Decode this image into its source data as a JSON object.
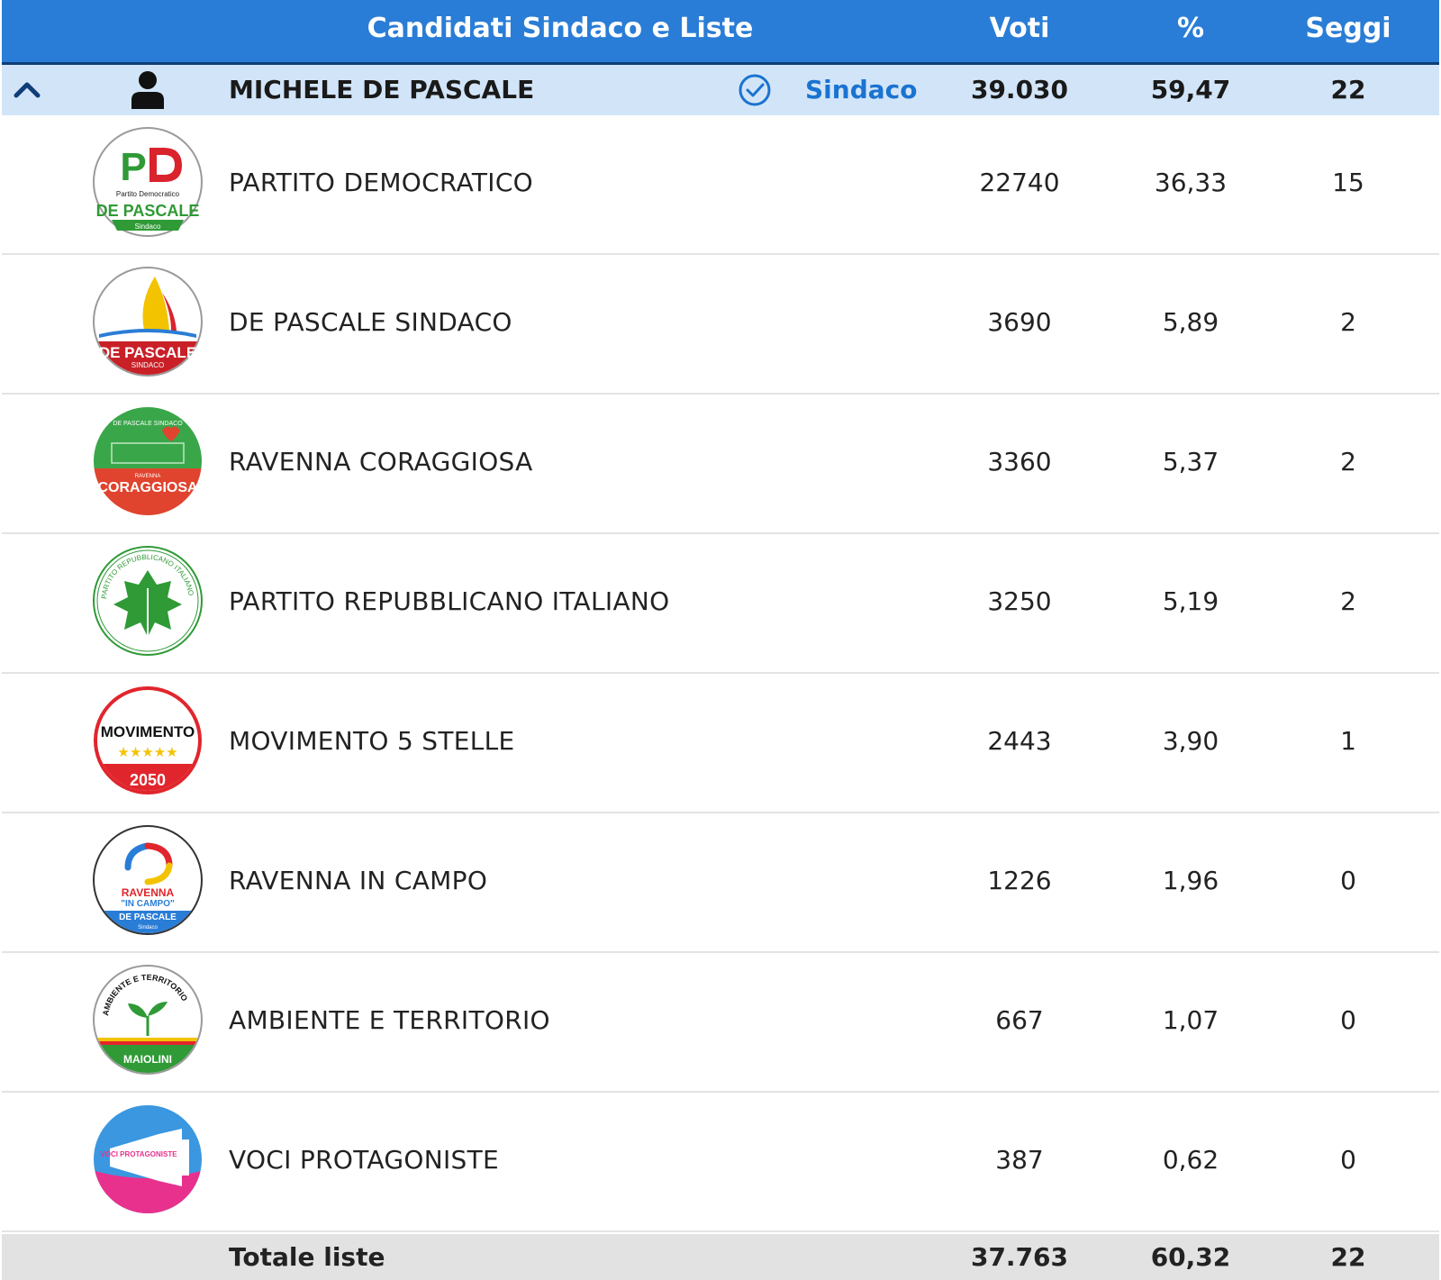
{
  "header": {
    "title": "Candidati Sindaco e Liste",
    "votes": "Voti",
    "percent": "%",
    "seats": "Seggi"
  },
  "candidate": {
    "name": "MICHELE DE PASCALE",
    "role": "Sindaco",
    "votes": "39.030",
    "percent": "59,47",
    "seats": "22"
  },
  "lists": [
    {
      "name": "PARTITO DEMOCRATICO",
      "votes": "22740",
      "percent": "36,33",
      "seats": "15",
      "logo_icon": "pd-logo",
      "logo_text": {
        "main": "DE PASCALE",
        "top": "Partito Democratico",
        "bottom": "Sindaco"
      }
    },
    {
      "name": "DE PASCALE SINDACO",
      "votes": "3690",
      "percent": "5,89",
      "seats": "2",
      "logo_icon": "sailboat-logo",
      "logo_text": {
        "main": "DE PASCALE",
        "sub": "SINDACO"
      }
    },
    {
      "name": "RAVENNA CORAGGIOSA",
      "votes": "3360",
      "percent": "5,37",
      "seats": "2",
      "logo_icon": "coraggiosa-logo",
      "logo_text": {
        "top": "DE PASCALE SINDACO",
        "small": "RAVENNA",
        "main": "CORAGGIOSA"
      }
    },
    {
      "name": "PARTITO REPUBBLICANO ITALIANO",
      "votes": "3250",
      "percent": "5,19",
      "seats": "2",
      "logo_icon": "ivy-leaf-logo",
      "logo_text": {
        "ring": "PARTITO REPUBBLICANO ITALIANO"
      }
    },
    {
      "name": "MOVIMENTO 5 STELLE",
      "votes": "2443",
      "percent": "3,90",
      "seats": "1",
      "logo_icon": "m5s-logo",
      "logo_text": {
        "main": "MOVIMENTO",
        "stars": "★★★★★",
        "bottom": "2050"
      }
    },
    {
      "name": "RAVENNA IN CAMPO",
      "votes": "1226",
      "percent": "1,96",
      "seats": "0",
      "logo_icon": "ravenna-in-campo-logo",
      "logo_text": {
        "main": "RAVENNA",
        "sub": "\"IN CAMPO\"",
        "band": "DE PASCALE",
        "bottom": "Sindaco"
      }
    },
    {
      "name": "AMBIENTE E TERRITORIO",
      "votes": "667",
      "percent": "1,07",
      "seats": "0",
      "logo_icon": "sprout-logo",
      "logo_text": {
        "ring": "AMBIENTE E TERRITORIO",
        "band": "MAIOLINI"
      }
    },
    {
      "name": "VOCI PROTAGONISTE",
      "votes": "387",
      "percent": "0,62",
      "seats": "0",
      "logo_icon": "megaphone-logo",
      "logo_text": {
        "main": "VOCI PROTAGONISTE"
      }
    }
  ],
  "total": {
    "label": "Totale liste",
    "votes": "37.763",
    "percent": "60,32",
    "seats": "22"
  },
  "colors": {
    "header_bg": "#2a7dd6",
    "header_border": "#0f3d78",
    "candidate_bg": "#d2e5f8",
    "accent": "#1a73d0",
    "total_bg": "#e2e2e2"
  },
  "icons": {
    "collapse": "chevron-up-icon",
    "avatar": "person-icon",
    "elected": "check-circle-icon"
  }
}
